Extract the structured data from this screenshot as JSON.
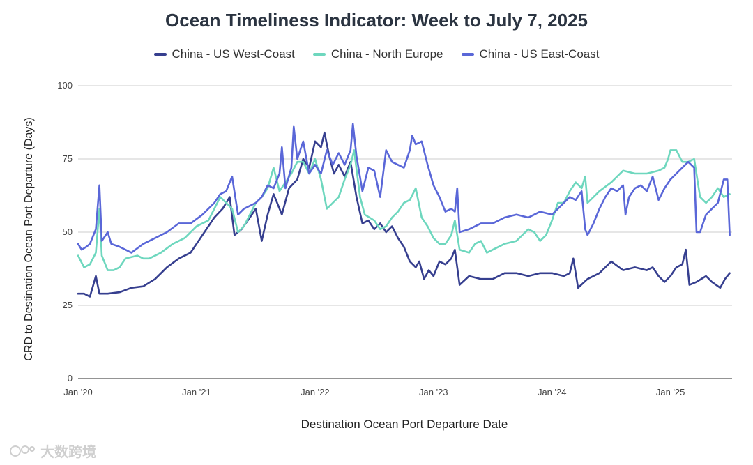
{
  "chart_data": {
    "type": "line",
    "title": "Ocean Timeliness Indicator: Week to July 7, 2025",
    "xlabel": "Destination Ocean Port Departure Date",
    "ylabel": "CRD to Destination Ocean Port Departure (Days)",
    "ylim": [
      0,
      100
    ],
    "xlim": [
      2020.0,
      2025.52
    ],
    "y_ticks": [
      0,
      25,
      50,
      75,
      100
    ],
    "x_ticks": [
      {
        "value": 2020,
        "label": "Jan '20"
      },
      {
        "value": 2021,
        "label": "Jan '21"
      },
      {
        "value": 2022,
        "label": "Jan '22"
      },
      {
        "value": 2023,
        "label": "Jan '23"
      },
      {
        "value": 2024,
        "label": "Jan '24"
      },
      {
        "value": 2025,
        "label": "Jan '25"
      }
    ],
    "grid": true,
    "legend_position": "top",
    "series": [
      {
        "name": "China - US West-Coast",
        "color": "#363f8f",
        "points": [
          [
            2020.0,
            29
          ],
          [
            2020.05,
            29
          ],
          [
            2020.1,
            28
          ],
          [
            2020.15,
            35
          ],
          [
            2020.18,
            29
          ],
          [
            2020.25,
            29
          ],
          [
            2020.35,
            29.5
          ],
          [
            2020.45,
            31
          ],
          [
            2020.55,
            31.5
          ],
          [
            2020.65,
            34
          ],
          [
            2020.75,
            38
          ],
          [
            2020.85,
            41
          ],
          [
            2020.95,
            43
          ],
          [
            2021.05,
            49
          ],
          [
            2021.15,
            55
          ],
          [
            2021.22,
            58
          ],
          [
            2021.28,
            62
          ],
          [
            2021.32,
            49
          ],
          [
            2021.38,
            51
          ],
          [
            2021.45,
            55
          ],
          [
            2021.5,
            58
          ],
          [
            2021.55,
            47
          ],
          [
            2021.6,
            56
          ],
          [
            2021.65,
            63
          ],
          [
            2021.72,
            56
          ],
          [
            2021.78,
            65
          ],
          [
            2021.85,
            68
          ],
          [
            2021.9,
            75
          ],
          [
            2021.95,
            72
          ],
          [
            2022.0,
            81
          ],
          [
            2022.05,
            79
          ],
          [
            2022.08,
            84
          ],
          [
            2022.12,
            76
          ],
          [
            2022.16,
            70
          ],
          [
            2022.2,
            73
          ],
          [
            2022.25,
            69
          ],
          [
            2022.3,
            74
          ],
          [
            2022.35,
            62
          ],
          [
            2022.4,
            53
          ],
          [
            2022.45,
            54
          ],
          [
            2022.5,
            51
          ],
          [
            2022.55,
            53
          ],
          [
            2022.6,
            50
          ],
          [
            2022.65,
            52
          ],
          [
            2022.7,
            48
          ],
          [
            2022.75,
            45
          ],
          [
            2022.8,
            40
          ],
          [
            2022.85,
            38
          ],
          [
            2022.88,
            40
          ],
          [
            2022.92,
            34
          ],
          [
            2022.96,
            37
          ],
          [
            2023.0,
            35
          ],
          [
            2023.05,
            40
          ],
          [
            2023.1,
            39
          ],
          [
            2023.15,
            41
          ],
          [
            2023.18,
            44
          ],
          [
            2023.22,
            32
          ],
          [
            2023.3,
            35
          ],
          [
            2023.4,
            34
          ],
          [
            2023.5,
            34
          ],
          [
            2023.6,
            36
          ],
          [
            2023.7,
            36
          ],
          [
            2023.8,
            35
          ],
          [
            2023.9,
            36
          ],
          [
            2024.0,
            36
          ],
          [
            2024.1,
            35
          ],
          [
            2024.15,
            36
          ],
          [
            2024.18,
            41
          ],
          [
            2024.22,
            31
          ],
          [
            2024.3,
            34
          ],
          [
            2024.4,
            36
          ],
          [
            2024.5,
            40
          ],
          [
            2024.6,
            37
          ],
          [
            2024.7,
            38
          ],
          [
            2024.8,
            37
          ],
          [
            2024.85,
            38
          ],
          [
            2024.9,
            35
          ],
          [
            2024.95,
            33
          ],
          [
            2025.0,
            35
          ],
          [
            2025.05,
            38
          ],
          [
            2025.1,
            39
          ],
          [
            2025.13,
            44
          ],
          [
            2025.16,
            32
          ],
          [
            2025.22,
            33
          ],
          [
            2025.3,
            35
          ],
          [
            2025.35,
            33
          ],
          [
            2025.42,
            31
          ],
          [
            2025.46,
            34
          ],
          [
            2025.5,
            36
          ]
        ]
      },
      {
        "name": "China - North Europe",
        "color": "#6ed7be",
        "points": [
          [
            2020.0,
            42
          ],
          [
            2020.05,
            38
          ],
          [
            2020.1,
            39
          ],
          [
            2020.15,
            43
          ],
          [
            2020.18,
            58
          ],
          [
            2020.2,
            42
          ],
          [
            2020.25,
            37
          ],
          [
            2020.3,
            37
          ],
          [
            2020.35,
            38
          ],
          [
            2020.4,
            41
          ],
          [
            2020.5,
            42
          ],
          [
            2020.55,
            41
          ],
          [
            2020.6,
            41
          ],
          [
            2020.7,
            43
          ],
          [
            2020.8,
            46
          ],
          [
            2020.9,
            48
          ],
          [
            2021.0,
            52
          ],
          [
            2021.1,
            54
          ],
          [
            2021.15,
            58
          ],
          [
            2021.2,
            62
          ],
          [
            2021.25,
            60
          ],
          [
            2021.3,
            58
          ],
          [
            2021.35,
            50
          ],
          [
            2021.4,
            52
          ],
          [
            2021.5,
            60
          ],
          [
            2021.55,
            62
          ],
          [
            2021.6,
            65
          ],
          [
            2021.65,
            72
          ],
          [
            2021.7,
            64
          ],
          [
            2021.8,
            70
          ],
          [
            2021.85,
            74
          ],
          [
            2021.9,
            74
          ],
          [
            2021.95,
            70
          ],
          [
            2022.0,
            75
          ],
          [
            2022.05,
            68
          ],
          [
            2022.1,
            58
          ],
          [
            2022.15,
            60
          ],
          [
            2022.2,
            62
          ],
          [
            2022.25,
            68
          ],
          [
            2022.3,
            73
          ],
          [
            2022.33,
            78
          ],
          [
            2022.38,
            62
          ],
          [
            2022.42,
            56
          ],
          [
            2022.5,
            54
          ],
          [
            2022.55,
            51
          ],
          [
            2022.6,
            52
          ],
          [
            2022.65,
            55
          ],
          [
            2022.7,
            57
          ],
          [
            2022.75,
            60
          ],
          [
            2022.8,
            61
          ],
          [
            2022.85,
            65
          ],
          [
            2022.9,
            55
          ],
          [
            2022.95,
            52
          ],
          [
            2023.0,
            48
          ],
          [
            2023.05,
            46
          ],
          [
            2023.1,
            46
          ],
          [
            2023.15,
            49
          ],
          [
            2023.18,
            54
          ],
          [
            2023.22,
            44
          ],
          [
            2023.3,
            43
          ],
          [
            2023.35,
            46
          ],
          [
            2023.4,
            47
          ],
          [
            2023.45,
            43
          ],
          [
            2023.5,
            44
          ],
          [
            2023.6,
            46
          ],
          [
            2023.7,
            47
          ],
          [
            2023.75,
            49
          ],
          [
            2023.8,
            51
          ],
          [
            2023.85,
            50
          ],
          [
            2023.9,
            47
          ],
          [
            2023.95,
            49
          ],
          [
            2024.0,
            54
          ],
          [
            2024.05,
            60
          ],
          [
            2024.1,
            60
          ],
          [
            2024.15,
            64
          ],
          [
            2024.2,
            67
          ],
          [
            2024.25,
            65
          ],
          [
            2024.28,
            69
          ],
          [
            2024.3,
            60
          ],
          [
            2024.4,
            64
          ],
          [
            2024.5,
            67
          ],
          [
            2024.6,
            71
          ],
          [
            2024.7,
            70
          ],
          [
            2024.8,
            70
          ],
          [
            2024.9,
            71
          ],
          [
            2024.95,
            72
          ],
          [
            2024.98,
            75
          ],
          [
            2025.0,
            78
          ],
          [
            2025.05,
            78
          ],
          [
            2025.1,
            74
          ],
          [
            2025.15,
            74
          ],
          [
            2025.2,
            75
          ],
          [
            2025.25,
            62
          ],
          [
            2025.3,
            60
          ],
          [
            2025.35,
            62
          ],
          [
            2025.4,
            65
          ],
          [
            2025.45,
            62
          ],
          [
            2025.5,
            63
          ]
        ]
      },
      {
        "name": "China - US East-Coast",
        "color": "#5a67d8",
        "points": [
          [
            2020.0,
            46
          ],
          [
            2020.03,
            44
          ],
          [
            2020.07,
            45
          ],
          [
            2020.1,
            46
          ],
          [
            2020.15,
            51
          ],
          [
            2020.18,
            66
          ],
          [
            2020.2,
            47
          ],
          [
            2020.25,
            50
          ],
          [
            2020.28,
            46
          ],
          [
            2020.35,
            45
          ],
          [
            2020.45,
            43
          ],
          [
            2020.55,
            46
          ],
          [
            2020.65,
            48
          ],
          [
            2020.75,
            50
          ],
          [
            2020.85,
            53
          ],
          [
            2020.95,
            53
          ],
          [
            2021.05,
            56
          ],
          [
            2021.15,
            60
          ],
          [
            2021.2,
            63
          ],
          [
            2021.25,
            64
          ],
          [
            2021.3,
            69
          ],
          [
            2021.35,
            56
          ],
          [
            2021.4,
            58
          ],
          [
            2021.5,
            60
          ],
          [
            2021.55,
            62
          ],
          [
            2021.6,
            66
          ],
          [
            2021.65,
            65
          ],
          [
            2021.7,
            70
          ],
          [
            2021.72,
            79
          ],
          [
            2021.75,
            65
          ],
          [
            2021.8,
            72
          ],
          [
            2021.82,
            86
          ],
          [
            2021.85,
            75
          ],
          [
            2021.9,
            81
          ],
          [
            2021.95,
            70
          ],
          [
            2022.0,
            73
          ],
          [
            2022.05,
            70
          ],
          [
            2022.1,
            78
          ],
          [
            2022.15,
            73
          ],
          [
            2022.2,
            77
          ],
          [
            2022.25,
            73
          ],
          [
            2022.3,
            78
          ],
          [
            2022.32,
            87
          ],
          [
            2022.35,
            76
          ],
          [
            2022.4,
            64
          ],
          [
            2022.45,
            72
          ],
          [
            2022.5,
            71
          ],
          [
            2022.55,
            62
          ],
          [
            2022.6,
            78
          ],
          [
            2022.65,
            74
          ],
          [
            2022.7,
            73
          ],
          [
            2022.75,
            72
          ],
          [
            2022.8,
            78
          ],
          [
            2022.82,
            83
          ],
          [
            2022.85,
            80
          ],
          [
            2022.9,
            81
          ],
          [
            2022.95,
            73
          ],
          [
            2023.0,
            66
          ],
          [
            2023.05,
            62
          ],
          [
            2023.1,
            57
          ],
          [
            2023.15,
            58
          ],
          [
            2023.18,
            57
          ],
          [
            2023.2,
            65
          ],
          [
            2023.22,
            50
          ],
          [
            2023.3,
            51
          ],
          [
            2023.4,
            53
          ],
          [
            2023.5,
            53
          ],
          [
            2023.6,
            55
          ],
          [
            2023.7,
            56
          ],
          [
            2023.8,
            55
          ],
          [
            2023.9,
            57
          ],
          [
            2024.0,
            56
          ],
          [
            2024.05,
            58
          ],
          [
            2024.1,
            60
          ],
          [
            2024.15,
            62
          ],
          [
            2024.2,
            61
          ],
          [
            2024.25,
            64
          ],
          [
            2024.28,
            51
          ],
          [
            2024.3,
            49
          ],
          [
            2024.35,
            53
          ],
          [
            2024.4,
            58
          ],
          [
            2024.45,
            62
          ],
          [
            2024.5,
            65
          ],
          [
            2024.55,
            64
          ],
          [
            2024.6,
            66
          ],
          [
            2024.62,
            56
          ],
          [
            2024.65,
            62
          ],
          [
            2024.7,
            65
          ],
          [
            2024.75,
            66
          ],
          [
            2024.8,
            64
          ],
          [
            2024.85,
            69
          ],
          [
            2024.9,
            61
          ],
          [
            2024.95,
            65
          ],
          [
            2025.0,
            68
          ],
          [
            2025.05,
            70
          ],
          [
            2025.1,
            72
          ],
          [
            2025.15,
            74
          ],
          [
            2025.2,
            72
          ],
          [
            2025.22,
            50
          ],
          [
            2025.25,
            50
          ],
          [
            2025.3,
            56
          ],
          [
            2025.35,
            58
          ],
          [
            2025.4,
            60
          ],
          [
            2025.45,
            68
          ],
          [
            2025.48,
            68
          ],
          [
            2025.5,
            49
          ]
        ]
      }
    ]
  },
  "watermark": {
    "text": "大数跨境"
  }
}
